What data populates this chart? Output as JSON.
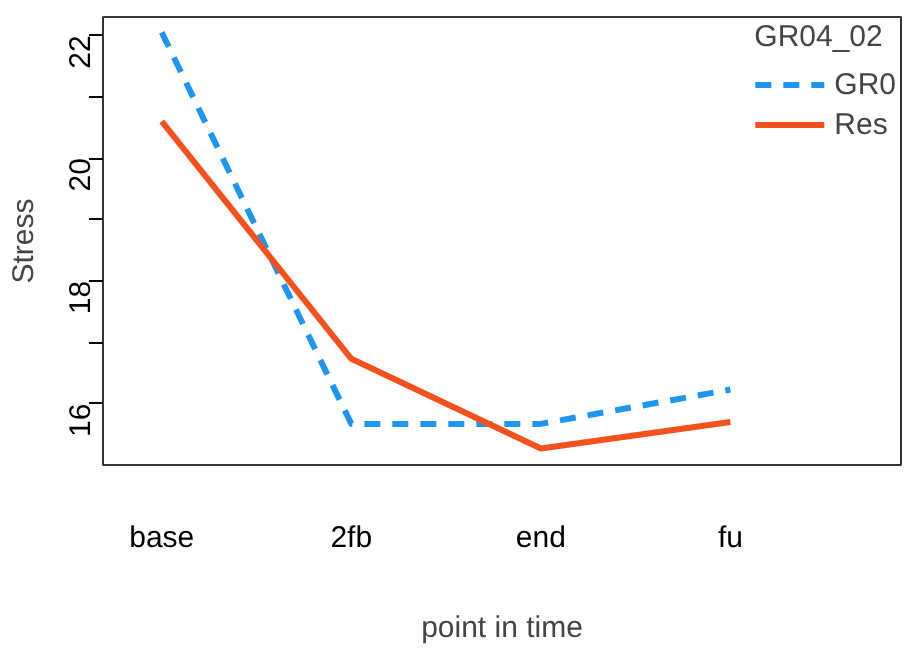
{
  "chart_data": {
    "type": "line",
    "xlabel": "point in time",
    "ylabel": "Stress",
    "legend_title": "GR04_02",
    "categories": [
      "base",
      "2fb",
      "end",
      "fu"
    ],
    "series": [
      {
        "name": "GR0",
        "color": "#1e96f0",
        "line_style": "dashed",
        "values": [
          22.05,
          15.67,
          15.67,
          16.23
        ]
      },
      {
        "name": "Res",
        "color": "#f4511e",
        "line_style": "solid",
        "values": [
          20.6,
          16.73,
          15.27,
          15.7
        ]
      }
    ],
    "ylim": [
      15.0,
      22.3
    ],
    "yticks": [
      {
        "value": 16,
        "label": "16"
      },
      {
        "value": 17,
        "label": null
      },
      {
        "value": 18,
        "label": "18"
      },
      {
        "value": 19,
        "label": null
      },
      {
        "value": 20,
        "label": "20"
      },
      {
        "value": 21,
        "label": null
      },
      {
        "value": 22,
        "label": "22"
      }
    ],
    "grid": false,
    "legend": "top right",
    "marker": "none"
  }
}
